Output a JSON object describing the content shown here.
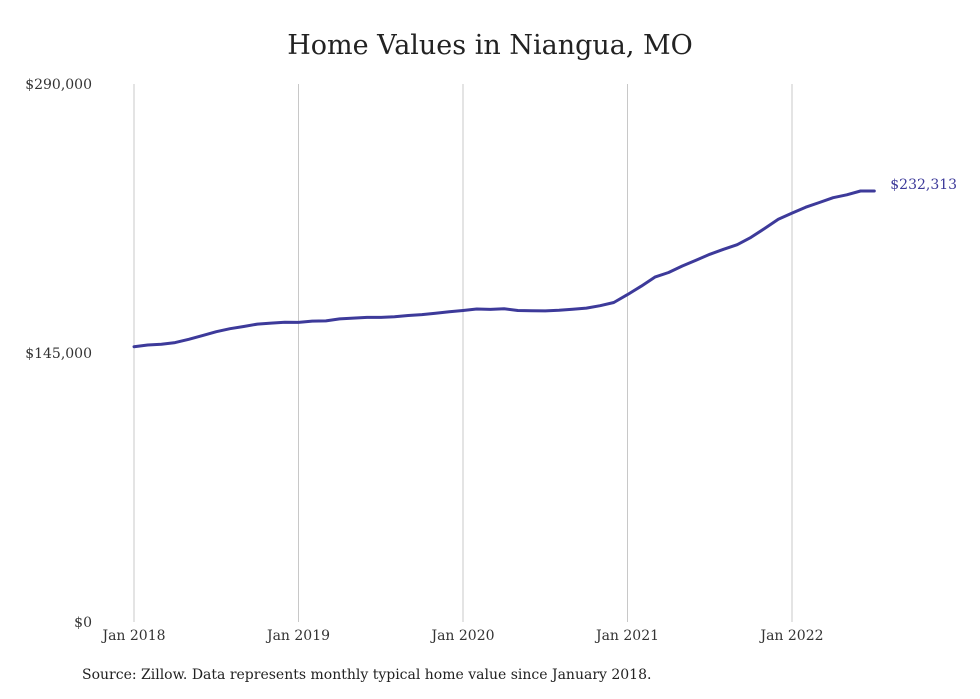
{
  "chart_data": {
    "type": "line",
    "title": "Home Values in Niangua, MO",
    "xlabel": "",
    "ylabel": "",
    "ylim": [
      0,
      290000
    ],
    "y_ticks": [
      0,
      145000,
      290000
    ],
    "y_tick_labels": [
      "$0",
      "$145,000",
      "$290,000"
    ],
    "x_ticks": [
      "2018-01",
      "2019-01",
      "2020-01",
      "2021-01",
      "2022-01"
    ],
    "x_tick_labels": [
      "Jan 2018",
      "Jan 2019",
      "Jan 2020",
      "Jan 2021",
      "Jan 2022"
    ],
    "grid": "vertical",
    "line_color": "#3d3a9a",
    "series": [
      {
        "x": [
          "2018-01",
          "2018-02",
          "2018-03",
          "2018-04",
          "2018-05",
          "2018-06",
          "2018-07",
          "2018-08",
          "2018-09",
          "2018-10",
          "2018-11",
          "2018-12",
          "2019-01",
          "2019-02",
          "2019-03",
          "2019-04",
          "2019-05",
          "2019-06",
          "2019-07",
          "2019-08",
          "2019-09",
          "2019-10",
          "2019-11",
          "2019-12",
          "2020-01",
          "2020-02",
          "2020-03",
          "2020-04",
          "2020-05",
          "2020-06",
          "2020-07",
          "2020-08",
          "2020-09",
          "2020-10",
          "2020-11",
          "2020-12",
          "2021-01",
          "2021-02",
          "2021-03",
          "2021-04",
          "2021-05",
          "2021-06",
          "2021-07",
          "2021-08",
          "2021-09",
          "2021-10",
          "2021-11",
          "2021-12",
          "2022-01",
          "2022-02",
          "2022-03",
          "2022-04",
          "2022-05",
          "2022-06",
          "2022-07"
        ],
        "values": [
          148400,
          149300,
          149700,
          150600,
          152400,
          154400,
          156500,
          158100,
          159300,
          160600,
          161100,
          161600,
          161500,
          162200,
          162300,
          163400,
          163800,
          164200,
          164200,
          164500,
          165200,
          165700,
          166400,
          167200,
          167900,
          168700,
          168500,
          168800,
          167900,
          167800,
          167700,
          168000,
          168600,
          169200,
          170500,
          172200,
          176500,
          181000,
          185900,
          188400,
          191900,
          195000,
          198200,
          200900,
          203400,
          207300,
          212100,
          217100,
          220400,
          223600,
          226100,
          228700,
          230300,
          232313,
          232313
        ],
        "end_label": "$232,313"
      }
    ]
  },
  "source_note": "Source: Zillow. Data represents monthly typical home value since January 2018."
}
